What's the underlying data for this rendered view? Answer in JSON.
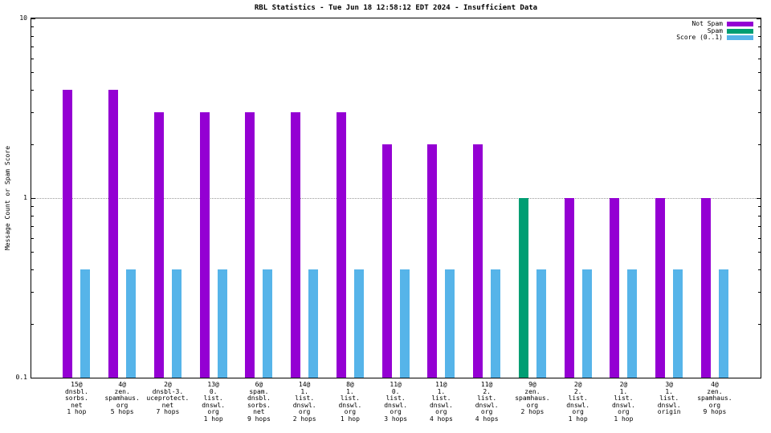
{
  "chart_data": {
    "type": "bar",
    "title": "RBL Statistics - Tue Jun 18 12:58:12 EDT 2024 - Insufficient Data",
    "ylabel": "Message Count or Spam Score",
    "y_scale": "log",
    "ylim": [
      0.1,
      10
    ],
    "yticks": [
      {
        "v": 10,
        "label": "10"
      },
      {
        "v": 1,
        "label": "1"
      },
      {
        "v": 0.1,
        "label": "0.1"
      }
    ],
    "gridlines": [
      1
    ],
    "grid": "horizontal dotted",
    "legend_position": "top-right",
    "series": [
      {
        "name": "Not Spam",
        "color": "#9400d3"
      },
      {
        "name": "Spam",
        "color": "#009e73"
      },
      {
        "name": "Score (0..1)",
        "color": "#56b4e9"
      }
    ],
    "score_series": "Score (0..1)",
    "groups": [
      {
        "label_lines": [
          "15@",
          "dnsbl.",
          "sorbs.",
          "net",
          "1 hop"
        ],
        "series": "Not Spam",
        "count": 4,
        "score": 0.4
      },
      {
        "label_lines": [
          "4@",
          "zen.",
          "spamhaus.",
          "org",
          "5 hops"
        ],
        "series": "Not Spam",
        "count": 4,
        "score": 0.4
      },
      {
        "label_lines": [
          "2@",
          "dnsbl-3.",
          "uceprotect.",
          "net",
          "7 hops"
        ],
        "series": "Not Spam",
        "count": 3,
        "score": 0.4
      },
      {
        "label_lines": [
          "13@",
          "0.",
          "list.",
          "dnswl.",
          "org",
          "1 hop"
        ],
        "series": "Not Spam",
        "count": 3,
        "score": 0.4
      },
      {
        "label_lines": [
          "6@",
          "spam.",
          "dnsbl.",
          "sorbs.",
          "net",
          "9 hops"
        ],
        "series": "Not Spam",
        "count": 3,
        "score": 0.4
      },
      {
        "label_lines": [
          "14@",
          "1.",
          "list.",
          "dnswl.",
          "org",
          "2 hops"
        ],
        "series": "Not Spam",
        "count": 3,
        "score": 0.4
      },
      {
        "label_lines": [
          "8@",
          "1.",
          "list.",
          "dnswl.",
          "org",
          "1 hop"
        ],
        "series": "Not Spam",
        "count": 3,
        "score": 0.4
      },
      {
        "label_lines": [
          "11@",
          "0.",
          "list.",
          "dnswl.",
          "org",
          "3 hops"
        ],
        "series": "Not Spam",
        "count": 2,
        "score": 0.4
      },
      {
        "label_lines": [
          "11@",
          "1.",
          "list.",
          "dnswl.",
          "org",
          "4 hops"
        ],
        "series": "Not Spam",
        "count": 2,
        "score": 0.4
      },
      {
        "label_lines": [
          "11@",
          "2.",
          "list.",
          "dnswl.",
          "org",
          "4 hops"
        ],
        "series": "Not Spam",
        "count": 2,
        "score": 0.4
      },
      {
        "label_lines": [
          "9@",
          "zen.",
          "spamhaus.",
          "org",
          "2 hops"
        ],
        "series": "Spam",
        "count": 1,
        "score": 0.4
      },
      {
        "label_lines": [
          "2@",
          "2.",
          "list.",
          "dnswl.",
          "org",
          "1 hop"
        ],
        "series": "Not Spam",
        "count": 1,
        "score": 0.4
      },
      {
        "label_lines": [
          "2@",
          "1.",
          "list.",
          "dnswl.",
          "org",
          "1 hop"
        ],
        "series": "Not Spam",
        "count": 1,
        "score": 0.4
      },
      {
        "label_lines": [
          "3@",
          "1.",
          "list.",
          "dnswl.",
          "origin"
        ],
        "series": "Not Spam",
        "count": 1,
        "score": 0.4
      },
      {
        "label_lines": [
          "4@",
          "zen.",
          "spamhaus.",
          "org",
          "9 hops"
        ],
        "series": "Not Spam",
        "count": 1,
        "score": 0.4
      }
    ]
  }
}
